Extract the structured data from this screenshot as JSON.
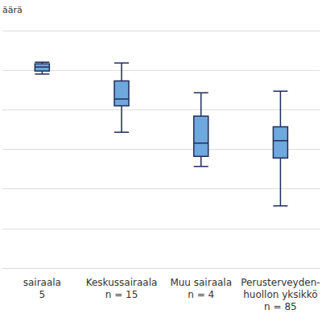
{
  "chart_data": {
    "type": "boxplot",
    "y_label": "äärä",
    "categories": [
      "sairaala\n5",
      "Keskussairaala\nn = 15",
      "Muu sairaala\nn = 4",
      "Perusterveyden-\nhuollon yksikkö\nn = 85"
    ],
    "values": [
      [
        4.9,
        4.98,
        5.08,
        5.16,
        5.2
      ],
      [
        3.43,
        4.1,
        4.27,
        4.73,
        5.18
      ],
      [
        2.57,
        2.82,
        3.16,
        3.84,
        4.43
      ],
      [
        1.57,
        2.78,
        3.22,
        3.57,
        4.47
      ]
    ],
    "color": "#6fa8dc",
    "ylim": [
      0,
      6
    ],
    "yticks": [
      0,
      1,
      2,
      3,
      4,
      5,
      6
    ],
    "grid": true,
    "tick_labels": "x"
  }
}
